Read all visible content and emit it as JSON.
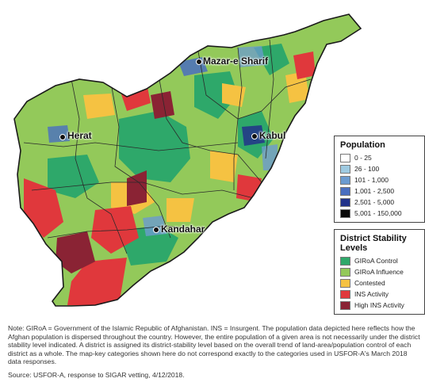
{
  "map": {
    "cities": [
      {
        "id": "mazar",
        "name": "Mazar-e Sharif"
      },
      {
        "id": "herat",
        "name": "Herat"
      },
      {
        "id": "kabul",
        "name": "Kabul"
      },
      {
        "id": "kandahar",
        "name": "Kandahar"
      }
    ],
    "colors": {
      "giroa_control": "#2ea86a",
      "giroa_influence": "#93c95a",
      "contested": "#f5c242",
      "ins_activity": "#e0383c",
      "high_ins_activity": "#8a2334",
      "border": "#2a2a2a"
    }
  },
  "population_legend": {
    "title": "Population",
    "items": [
      {
        "label": "0 - 25",
        "color": "#ffffff"
      },
      {
        "label": "26 - 100",
        "color": "#9ecae1"
      },
      {
        "label": "101 - 1,000",
        "color": "#6b9bd0"
      },
      {
        "label": "1,001 - 2,500",
        "color": "#4a6fc0"
      },
      {
        "label": "2,501 - 5,000",
        "color": "#22338a"
      },
      {
        "label": "5,001 - 150,000",
        "color": "#0a0a0a"
      }
    ]
  },
  "stability_legend": {
    "title_line1": "District Stability",
    "title_line2": "Levels",
    "items": [
      {
        "label": "GIRoA Control",
        "color": "#2ea86a"
      },
      {
        "label": "GIRoA Influence",
        "color": "#93c95a"
      },
      {
        "label": "Contested",
        "color": "#f5c242"
      },
      {
        "label": "INS Activity",
        "color": "#e0383c"
      },
      {
        "label": "High INS Activity",
        "color": "#8a2334"
      }
    ]
  },
  "note": "Note: GIRoA = Government of the Islamic Republic of Afghanistan. INS = Insurgent. The population data depicted here reflects how the Afghan population is dispersed throughout the country. However, the entire population of a given area is not necessarily under the district stability level indicated. A district is assigned its district-stability level based on the overall trend of land-area/population control of each district as a whole. The map-key categories shown here do not correspond exactly to the categories used in USFOR-A's March 2018 data responses.",
  "source": "Source: USFOR-A, response to SIGAR vetting, 4/12/2018."
}
